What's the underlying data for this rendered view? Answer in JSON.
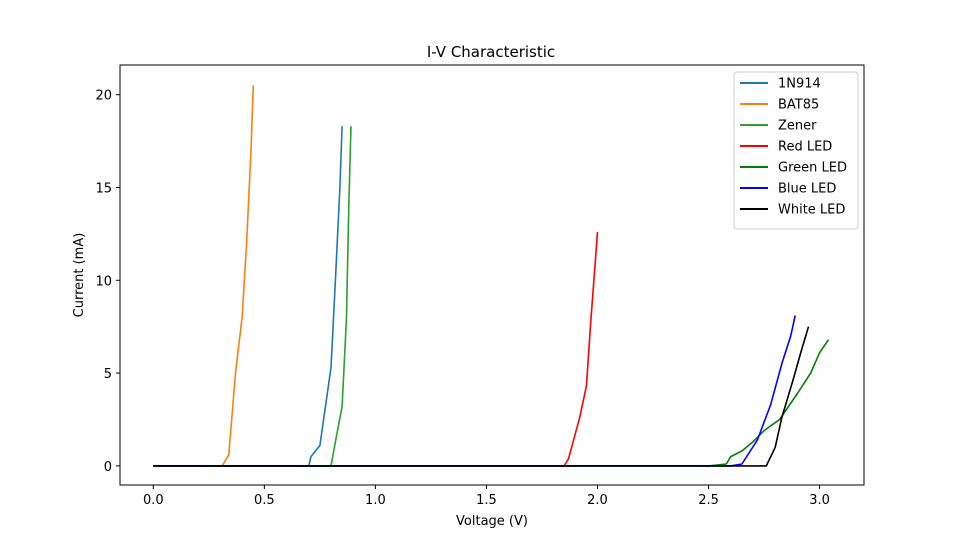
{
  "chart_data": {
    "type": "line",
    "title": "I-V Characteristic",
    "xlabel": "Voltage (V)",
    "ylabel": "Current (mA)",
    "xlim": [
      -0.15,
      3.2
    ],
    "ylim": [
      -1.03,
      21.6
    ],
    "xticks": [
      0.0,
      0.5,
      1.0,
      1.5,
      2.0,
      2.5,
      3.0
    ],
    "xtick_labels": [
      "0.0",
      "0.5",
      "1.0",
      "1.5",
      "2.0",
      "2.5",
      "3.0"
    ],
    "yticks": [
      0,
      5,
      10,
      15,
      20
    ],
    "ytick_labels": [
      "0",
      "5",
      "10",
      "15",
      "20"
    ],
    "grid": false,
    "legend_position": "top-right",
    "series": [
      {
        "name": "1N914",
        "color": "#1f77b4",
        "x": [
          0.0,
          0.5,
          0.7,
          0.71,
          0.75,
          0.8,
          0.82,
          0.84,
          0.85
        ],
        "y": [
          0,
          0,
          0,
          0.5,
          1.1,
          5.3,
          10,
          15,
          18.3
        ]
      },
      {
        "name": "BAT85",
        "color": "#ff7f0e",
        "x": [
          0.0,
          0.2,
          0.31,
          0.34,
          0.37,
          0.4,
          0.42,
          0.44,
          0.45
        ],
        "y": [
          0,
          0,
          0,
          0.6,
          5.0,
          8.0,
          12.0,
          17.0,
          20.5
        ]
      },
      {
        "name": "Zener",
        "color": "#2ca02c",
        "x": [
          0.0,
          0.5,
          0.8,
          0.82,
          0.85,
          0.87,
          0.88,
          0.89
        ],
        "y": [
          0,
          0,
          0,
          1.3,
          3.2,
          8.0,
          14.0,
          18.3
        ]
      },
      {
        "name": "Red LED",
        "color": "#ff0000",
        "x": [
          0.0,
          1.5,
          1.85,
          1.87,
          1.89,
          1.92,
          1.95,
          1.97,
          1.99,
          2.0
        ],
        "y": [
          0,
          0,
          0,
          0.4,
          1.3,
          2.6,
          4.3,
          7.8,
          11.0,
          12.6
        ]
      },
      {
        "name": "Green LED",
        "color": "#008000",
        "x": [
          0.0,
          2.0,
          2.5,
          2.58,
          2.6,
          2.65,
          2.7,
          2.75,
          2.82,
          2.9,
          2.96,
          3.0,
          3.04
        ],
        "y": [
          0,
          0,
          0,
          0.1,
          0.5,
          0.8,
          1.3,
          1.9,
          2.5,
          3.9,
          5.0,
          6.1,
          6.8
        ]
      },
      {
        "name": "Blue LED",
        "color": "#0000ff",
        "x": [
          0.0,
          2.0,
          2.6,
          2.65,
          2.72,
          2.78,
          2.83,
          2.87,
          2.89
        ],
        "y": [
          0,
          0,
          0,
          0.1,
          1.4,
          3.3,
          5.5,
          7.0,
          8.1
        ]
      },
      {
        "name": "White LED",
        "color": "#000000",
        "x": [
          0.0,
          2.0,
          2.76,
          2.8,
          2.83,
          2.88,
          2.92,
          2.95
        ],
        "y": [
          0,
          0,
          0,
          1.0,
          2.6,
          4.6,
          6.3,
          7.5
        ]
      }
    ]
  }
}
